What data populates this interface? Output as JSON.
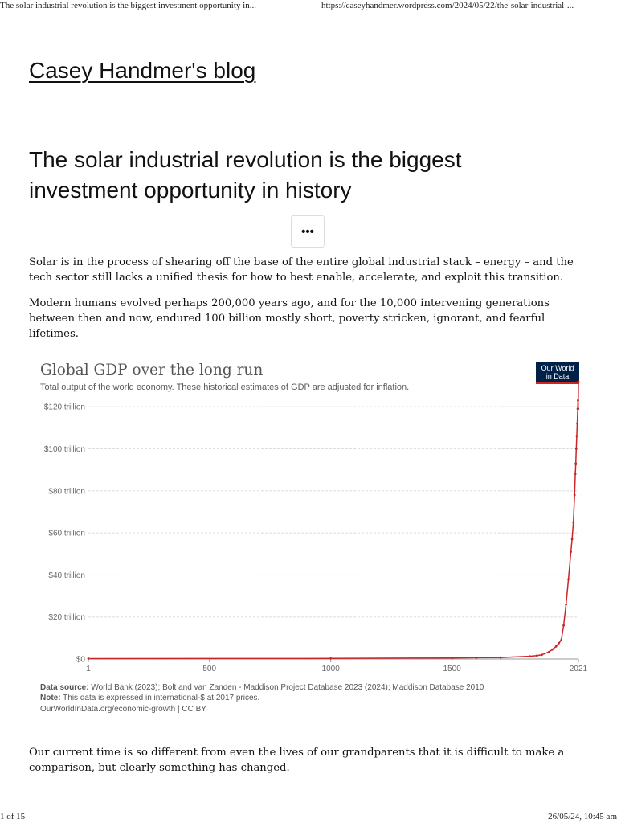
{
  "print_header": {
    "left": "The solar industrial revolution is the biggest investment opportunity in...",
    "right": "https://caseyhandmer.wordpress.com/2024/05/22/the-solar-industrial-..."
  },
  "print_footer": {
    "left": "1 of 15",
    "right": "26/05/24, 10:45 am"
  },
  "blog": {
    "title": "Casey Handmer's blog"
  },
  "post": {
    "title": "The solar industrial revolution is the biggest investment opportunity in history",
    "more_button": "•••",
    "paragraphs": [
      "Solar is in the process of shearing off the base of the entire global industrial stack – energy – and the tech sector still lacks a unified thesis for how to best enable, accelerate, and exploit this transition.",
      "Modern humans evolved perhaps 200,000 years ago, and for the 10,000 intervening generations between then and now, endured 100 billion mostly short, poverty stricken, ignorant, and fearful lifetimes.",
      "Our current time is so different from even the lives of our grandparents that it is difficult to make a comparison, but clearly something has changed."
    ]
  },
  "figure": {
    "logo_text": "Our World in Data",
    "source_label": "Data source:",
    "source_text": " World Bank (2023); Bolt and van Zanden - Maddison Project Database 2023 (2024); Maddison Database 2010",
    "note_label": "Note:",
    "note_text": " This data is expressed in international-$ at 2017 prices.",
    "credit": "OurWorldInData.org/economic-growth | CC BY"
  },
  "chart_data": {
    "type": "line",
    "title": "Global GDP over the long run",
    "subtitle": "Total output of the world economy. These historical estimates of GDP are adjusted for inflation.",
    "xlabel": "",
    "ylabel": "",
    "xlim": [
      1,
      2021
    ],
    "ylim": [
      0,
      130
    ],
    "x_ticks": [
      1,
      500,
      1000,
      1500,
      2021
    ],
    "y_ticks": [
      0,
      20,
      40,
      60,
      80,
      100,
      120
    ],
    "y_tick_labels": [
      "$0",
      "$20 trillion",
      "$40 trillion",
      "$60 trillion",
      "$80 trillion",
      "$100 trillion",
      "$120 trillion"
    ],
    "grid": true,
    "series": [
      {
        "color": "#ca2628",
        "x": [
          1,
          1000,
          1500,
          1600,
          1700,
          1820,
          1850,
          1870,
          1900,
          1913,
          1929,
          1940,
          1950,
          1960,
          1970,
          1980,
          1990,
          1995,
          2000,
          2005,
          2008,
          2010,
          2012,
          2014,
          2016,
          2018,
          2019,
          2020,
          2021
        ],
        "y": [
          0.2,
          0.25,
          0.5,
          0.6,
          0.7,
          1.3,
          1.6,
          2.0,
          3.4,
          4.5,
          6.0,
          7.5,
          9.0,
          16,
          26,
          38,
          51,
          57,
          65,
          78,
          88,
          93,
          100,
          106,
          112,
          119,
          123,
          119,
          132
        ]
      }
    ]
  }
}
